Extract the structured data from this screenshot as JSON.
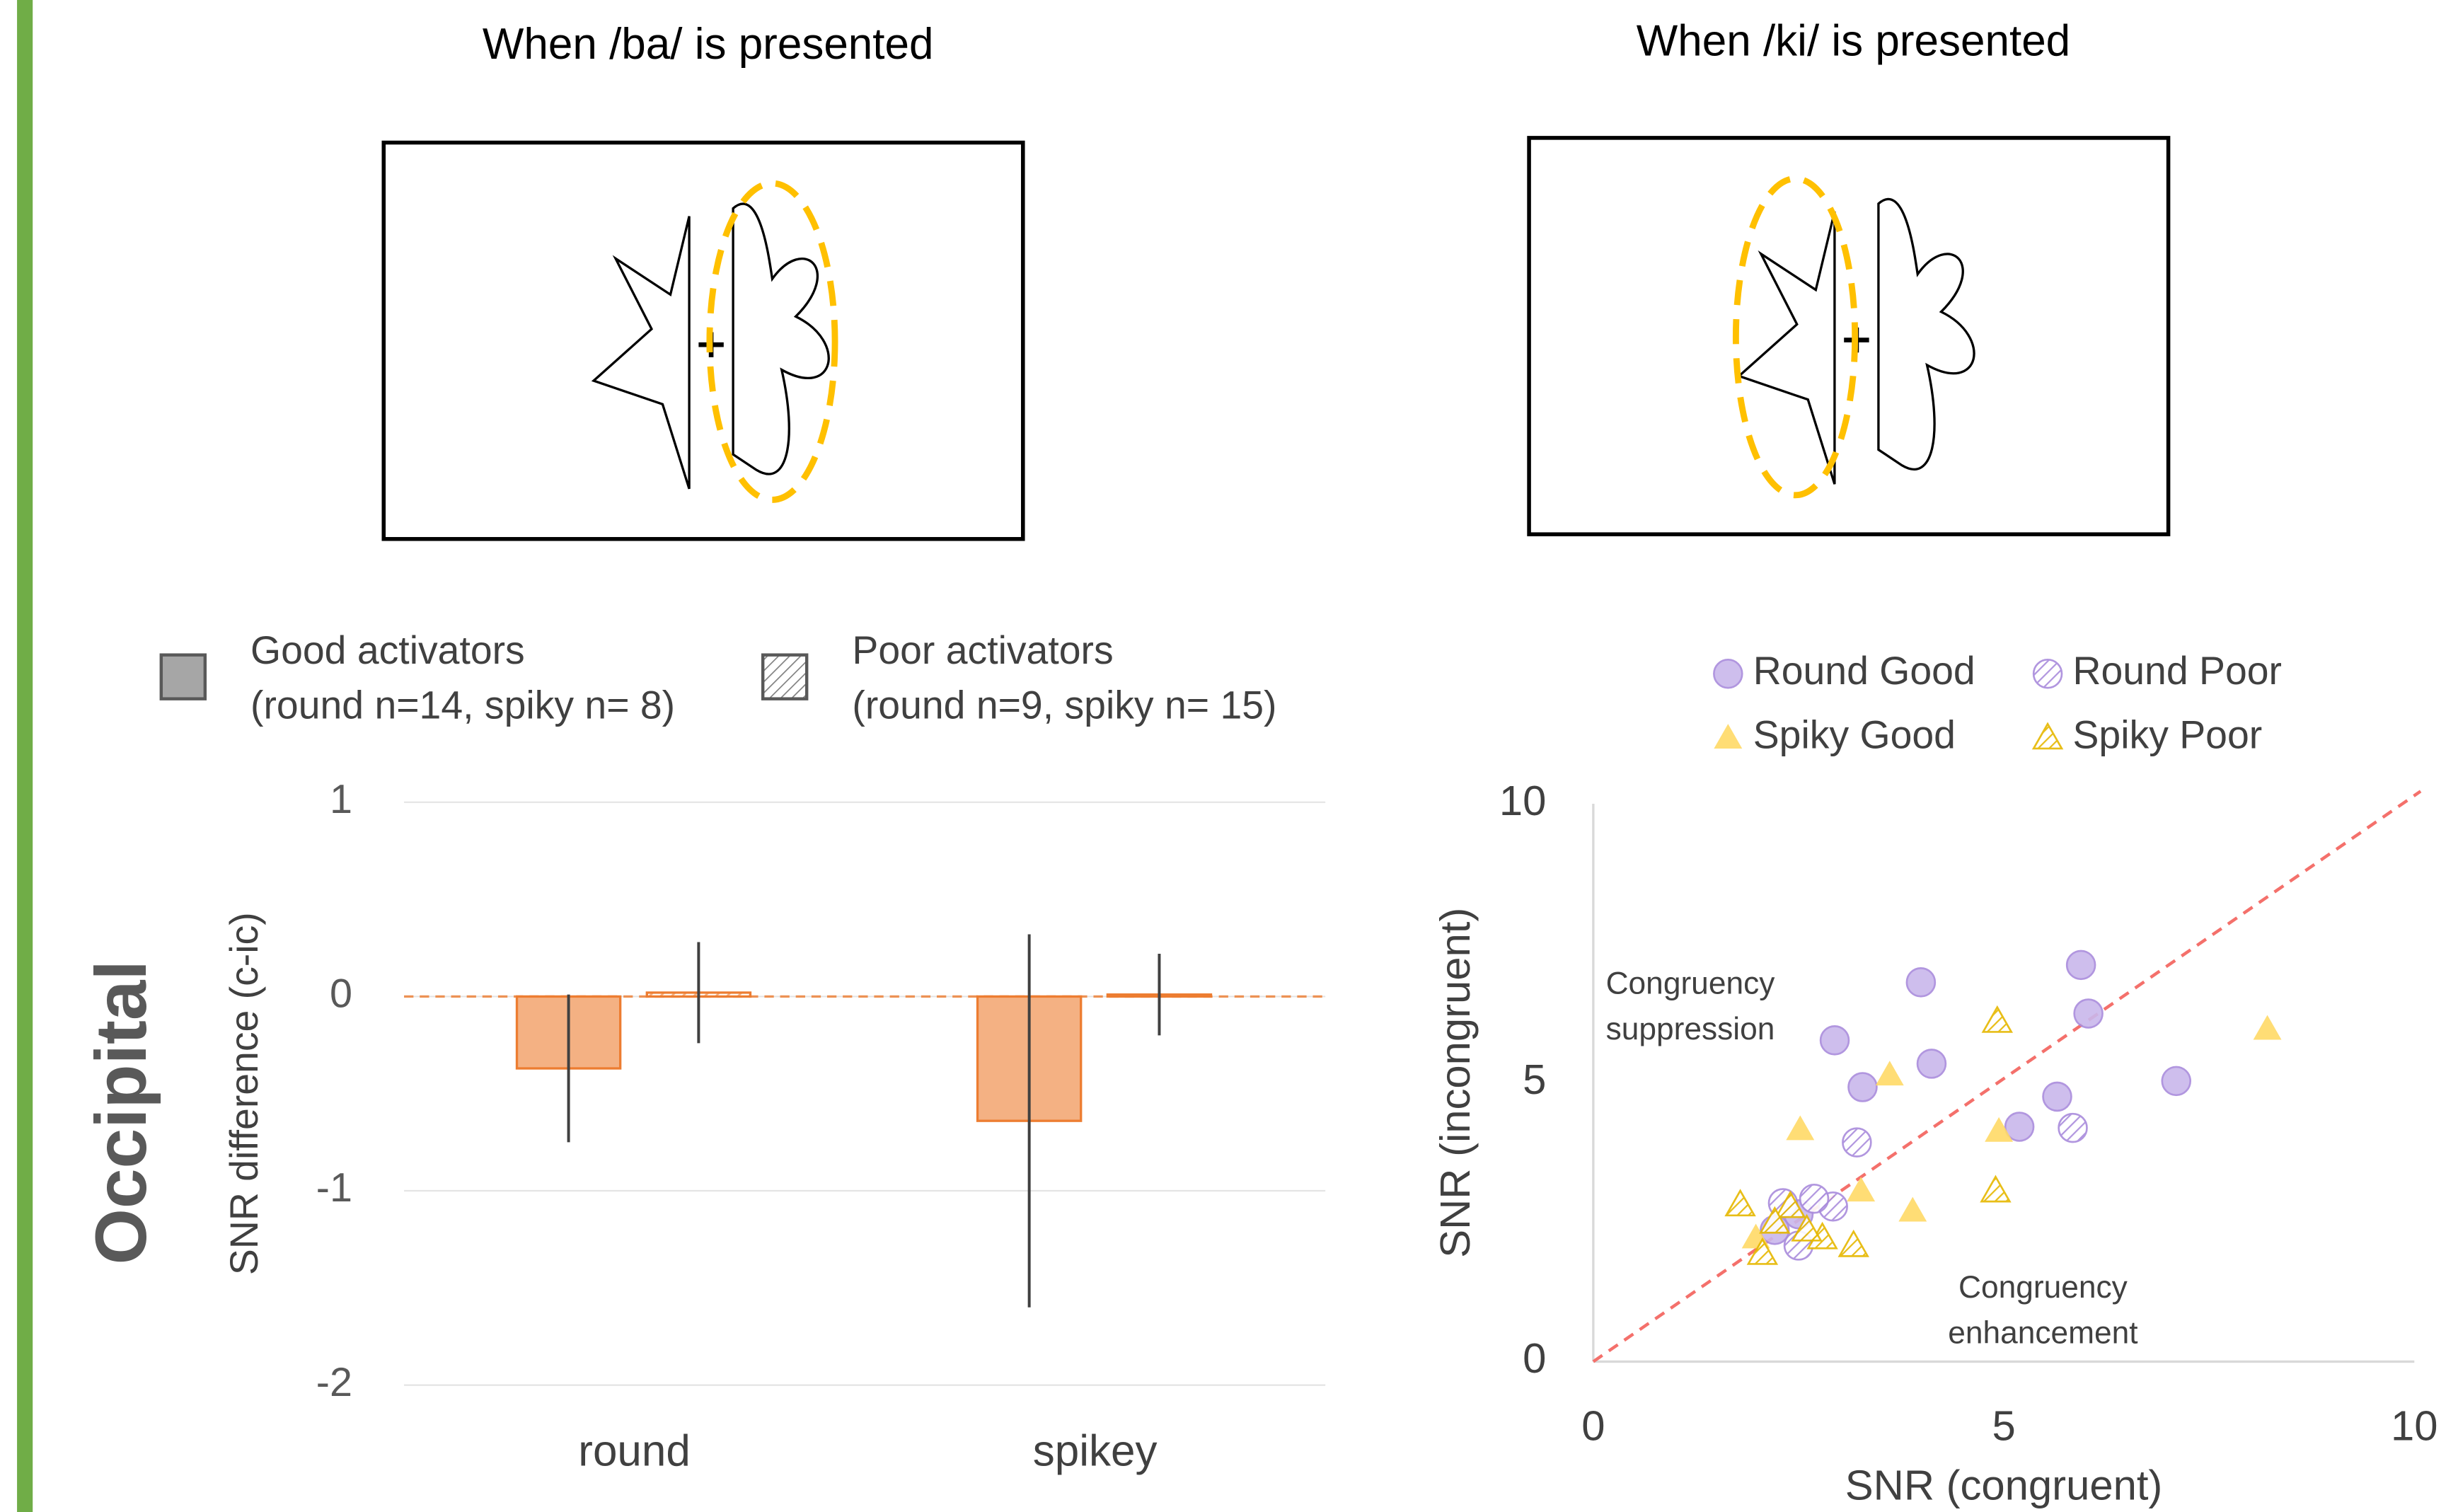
{
  "panels": [
    {
      "title": "When /ba/ is presented"
    },
    {
      "title": "When /ki/ is presented"
    }
  ],
  "region": "Occipital",
  "chart_data": [
    {
      "type": "bar",
      "ylabel": "SNR difference (c-ic)",
      "categories": [
        "round",
        "spikey"
      ],
      "series": [
        {
          "name": "Good activators",
          "detail": "(round n=14, spiky n= 8)",
          "color": "#f4b183",
          "values": [
            -0.37,
            -0.64
          ],
          "errors": [
            0.38,
            0.96
          ]
        },
        {
          "name": "Poor activators",
          "detail": "(round n=9, spiky n= 15)",
          "color": "#f4b183",
          "hatched": true,
          "values": [
            0.02,
            0.01
          ],
          "errors": [
            0.26,
            0.21
          ]
        }
      ],
      "ylim": [
        -2,
        1
      ],
      "yticks": [
        -2,
        -1,
        0,
        1
      ],
      "grid": true
    },
    {
      "type": "scatter",
      "xlabel": "SNR (congruent)",
      "ylabel": "SNR (incongruent)",
      "annotations": [
        [
          "Congruency",
          "suppression"
        ],
        [
          "Congruency",
          "enhancement"
        ]
      ],
      "series": [
        {
          "name": "Round Good",
          "color": "#c9b8ec",
          "marker": "circle",
          "x": [
            2.94,
            3.99,
            3.28,
            4.12,
            5.94,
            6.03,
            5.65,
            5.19,
            7.1,
            2.21,
            2.5
          ],
          "values": [
            5.76,
            6.8,
            4.92,
            5.34,
            7.11,
            6.24,
            4.75,
            4.21,
            5.03,
            2.36,
            2.64
          ]
        },
        {
          "name": "Round Poor",
          "color": "#c9b8ec",
          "marker": "circle",
          "hatched": true,
          "x": [
            3.21,
            5.84,
            2.92,
            2.31,
            2.5,
            2.69
          ],
          "values": [
            3.93,
            4.19,
            2.78,
            2.84,
            2.08,
            2.92
          ]
        },
        {
          "name": "Spiky Good",
          "color": "#ffd966",
          "marker": "triangle",
          "x": [
            3.61,
            2.52,
            4.94,
            3.89,
            3.26,
            8.21,
            1.98
          ],
          "values": [
            5.14,
            4.16,
            4.13,
            2.7,
            3.06,
            5.96,
            2.22
          ]
        },
        {
          "name": "Spiky Poor",
          "color": "#ffd966",
          "marker": "triangle",
          "hatched": true,
          "x": [
            4.92,
            4.9,
            1.79,
            2.06,
            2.4,
            2.79,
            3.17,
            2.21,
            2.6
          ],
          "values": [
            6.1,
            3.06,
            2.81,
            1.94,
            2.78,
            2.22,
            2.08,
            2.5,
            2.36
          ]
        }
      ],
      "xlim": [
        0,
        10
      ],
      "ylim": [
        0,
        10
      ],
      "xticks": [
        0,
        5,
        10
      ],
      "yticks": [
        0,
        5,
        10
      ]
    }
  ]
}
